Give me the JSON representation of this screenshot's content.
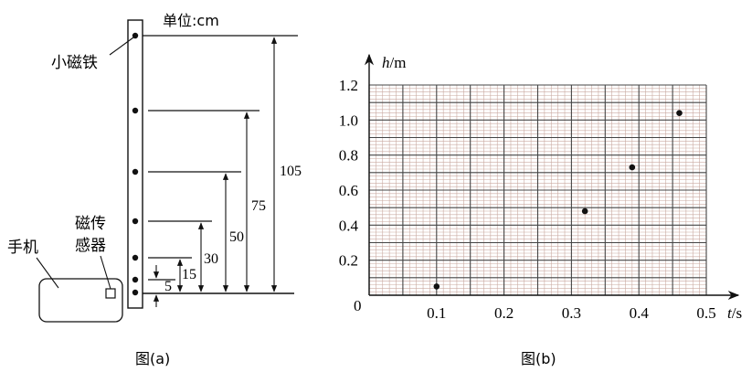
{
  "figure_a": {
    "unit_label": "单位:cm",
    "magnet_label": "小磁铁",
    "phone_label": "手机",
    "sensor_label_line1": "磁传",
    "sensor_label_line2": "感器",
    "dimensions": [
      {
        "id": "d5",
        "label": "5",
        "value": 5
      },
      {
        "id": "d15",
        "label": "15",
        "value": 15
      },
      {
        "id": "d30",
        "label": "30",
        "value": 30
      },
      {
        "id": "d50",
        "label": "50",
        "value": 50
      },
      {
        "id": "d75",
        "label": "75",
        "value": 75
      },
      {
        "id": "d105",
        "label": "105",
        "value": 105
      }
    ],
    "caption": "图(a)"
  },
  "figure_b": {
    "caption": "图(b)",
    "origin_label": "0",
    "x_axis_var": "t",
    "x_axis_unit": "/s",
    "y_axis_var": "h",
    "y_axis_unit": "/m"
  },
  "chart_data": {
    "type": "scatter",
    "x_ticks": [
      "0.1",
      "0.2",
      "0.3",
      "0.4",
      "0.5"
    ],
    "y_ticks": [
      "0.2",
      "0.4",
      "0.6",
      "0.8",
      "1.0",
      "1.2"
    ],
    "xlim": [
      0,
      0.5
    ],
    "ylim": [
      0,
      1.2
    ],
    "grid": true,
    "points": [
      {
        "x": 0.1,
        "y": 0.05
      },
      {
        "x": 0.32,
        "y": 0.48
      },
      {
        "x": 0.39,
        "y": 0.73
      },
      {
        "x": 0.46,
        "y": 1.04
      }
    ]
  }
}
